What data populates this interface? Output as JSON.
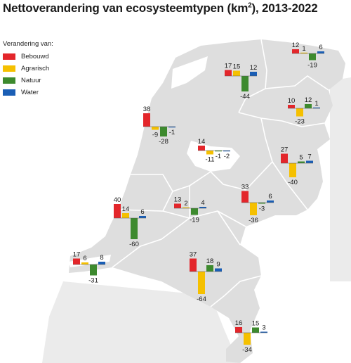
{
  "title_main": "Nettoverandering van ecosysteemtypen (km",
  "title_sup": "2",
  "title_tail": "), 2013-2022",
  "legend": {
    "title": "Verandering van:",
    "items": [
      {
        "label": "Bebouwd",
        "color": "#e3262b"
      },
      {
        "label": "Agrarisch",
        "color": "#f5c000"
      },
      {
        "label": "Natuur",
        "color": "#3d8a2e"
      },
      {
        "label": "Water",
        "color": "#1a5eb5"
      }
    ]
  },
  "colors": {
    "land": "#dedede",
    "border": "#ffffff",
    "neighbors": "#ebebeb"
  },
  "chart_data": {
    "type": "bar",
    "categories": [
      "Bebouwd",
      "Agrarisch",
      "Natuur",
      "Water"
    ],
    "series": [
      {
        "values": [
          12,
          1,
          -19,
          6
        ]
      },
      {
        "values": [
          17,
          15,
          -44,
          12
        ]
      },
      {
        "values": [
          10,
          -23,
          12,
          1
        ]
      },
      {
        "values": [
          38,
          -9,
          -28,
          -1
        ]
      },
      {
        "values": [
          14,
          -11,
          -1,
          -2
        ]
      },
      {
        "values": [
          27,
          -40,
          5,
          7
        ]
      },
      {
        "values": [
          13,
          2,
          -19,
          4
        ]
      },
      {
        "values": [
          33,
          -36,
          -3,
          6
        ]
      },
      {
        "values": [
          40,
          14,
          -60,
          6
        ]
      },
      {
        "values": [
          17,
          6,
          -31,
          8
        ]
      },
      {
        "values": [
          37,
          -64,
          18,
          9
        ]
      },
      {
        "values": [
          16,
          -34,
          15,
          3
        ]
      }
    ]
  }
}
